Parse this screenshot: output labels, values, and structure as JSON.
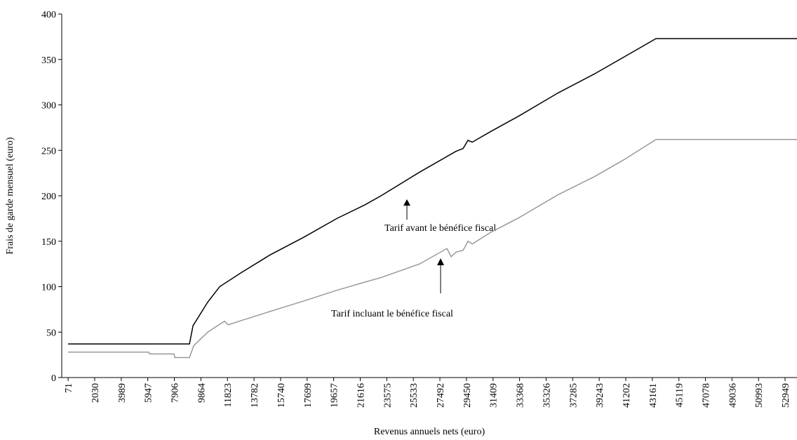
{
  "chart_data": {
    "type": "line",
    "xlabel": "Revenus annuels nets (euro)",
    "ylabel": "Frais de garde mensuel (euro)",
    "annotations": [
      "Tarif avant  le bénéfice fiscal",
      "Tarif incluant le bénéfice fiscal"
    ],
    "xlim": [
      -400,
      53830
    ],
    "xticks": [
      71,
      2030,
      3989,
      5947,
      7906,
      9864,
      11823,
      13782,
      15740,
      17699,
      19657,
      21616,
      23575,
      25533,
      27492,
      29450,
      31409,
      33368,
      35326,
      37285,
      39243,
      41202,
      43161,
      45119,
      47078,
      49036,
      50993,
      52949
    ],
    "ylim": [
      0,
      400
    ],
    "yticks": [
      0,
      50,
      100,
      150,
      200,
      250,
      300,
      350,
      400
    ],
    "series": [
      {
        "color": "#000000",
        "x": [
          71,
          9022,
          9281,
          10367,
          11247,
          12902,
          14972,
          17404,
          19888,
          21957,
          23147,
          25993,
          28683,
          29201,
          29563,
          29874,
          31271,
          33340,
          36186,
          38876,
          41101,
          43430,
          53829
        ],
        "values": [
          37,
          37,
          57,
          83,
          100,
          116,
          135,
          154,
          175,
          190,
          200,
          226,
          249,
          252,
          261,
          259,
          271,
          288,
          313,
          334,
          353,
          373,
          373
        ]
      },
      {
        "color": "#999999",
        "x": [
          71,
          6021,
          6073,
          7884,
          7935,
          9022,
          9332,
          10367,
          11402,
          11609,
          11868,
          12902,
          15231,
          17404,
          19888,
          21957,
          23147,
          25993,
          28010,
          28320,
          28683,
          29201,
          29563,
          29874,
          31271,
          33340,
          36186,
          38876,
          41101,
          43430,
          53829
        ],
        "values": [
          28,
          28,
          26,
          26,
          22,
          22,
          35,
          50,
          60,
          62,
          58,
          63,
          74,
          84,
          96,
          105,
          110,
          125,
          142,
          133,
          138,
          140,
          150,
          147,
          160,
          176,
          201,
          221,
          240,
          262,
          262
        ]
      }
    ]
  }
}
